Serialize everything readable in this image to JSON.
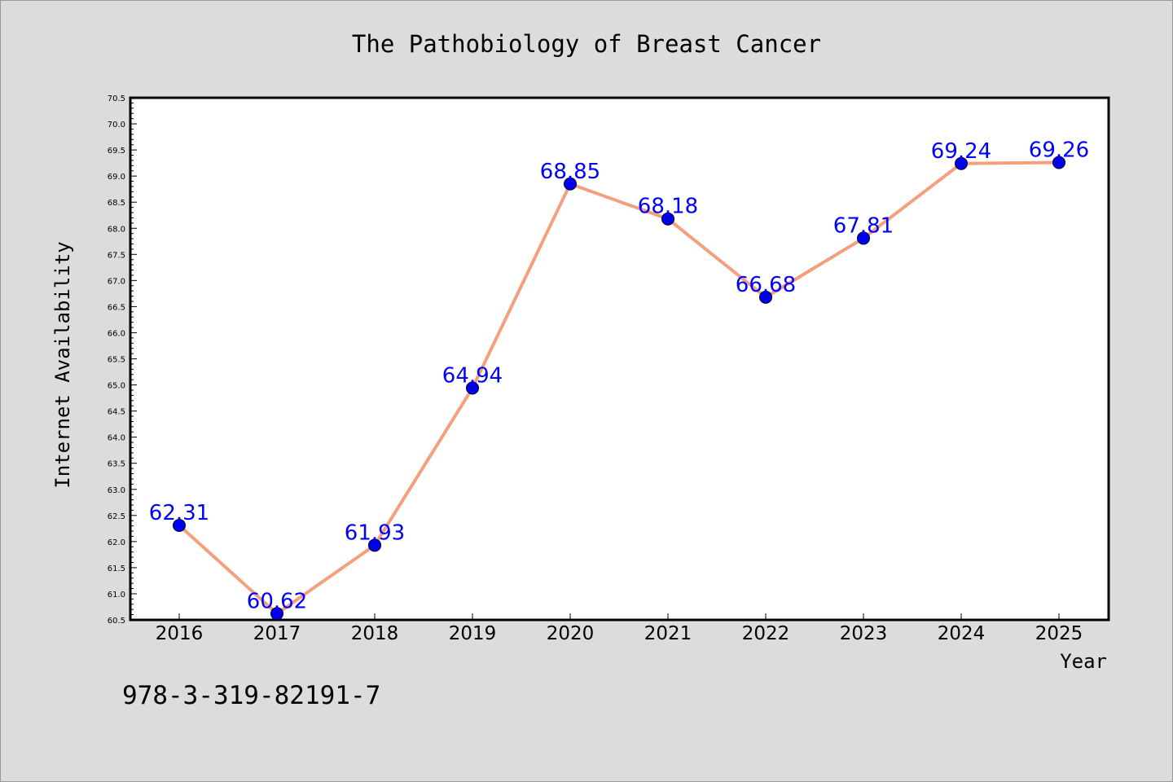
{
  "chart_data": {
    "type": "line",
    "title": "The Pathobiology of Breast Cancer",
    "xlabel": "Year",
    "ylabel": "Internet Availability",
    "categories": [
      "2016",
      "2017",
      "2018",
      "2019",
      "2020",
      "2021",
      "2022",
      "2023",
      "2024",
      "2025"
    ],
    "values": [
      62.31,
      60.62,
      61.93,
      64.94,
      68.85,
      68.18,
      66.68,
      67.81,
      69.24,
      69.26
    ],
    "data_labels": [
      "62.31",
      "60.62",
      "61.93",
      "64.94",
      "68.85",
      "68.18",
      "66.68",
      "67.81",
      "69.24",
      "69.26"
    ],
    "ylim": [
      60.5,
      70.5
    ],
    "yticks": [
      60.5,
      61.0,
      61.5,
      62.0,
      62.5,
      63.0,
      63.5,
      64.0,
      64.5,
      65.0,
      65.5,
      66.0,
      66.5,
      67.0,
      67.5,
      68.0,
      68.5,
      69.0,
      69.5,
      70.0,
      70.5
    ],
    "ytick_labels": [
      "60.5",
      "61.0",
      "61.5",
      "62.0",
      "62.5",
      "63.0",
      "63.5",
      "64.0",
      "64.5",
      "65.0",
      "65.5",
      "66.0",
      "66.5",
      "67.0",
      "67.5",
      "68.0",
      "68.5",
      "69.0",
      "69.5",
      "70.0",
      "70.5"
    ],
    "grid": false,
    "line_color": "#f4a07c",
    "marker_color": "#0000ee",
    "label_color": "#0000ff",
    "annotation": "978-3-319-82191-7"
  }
}
